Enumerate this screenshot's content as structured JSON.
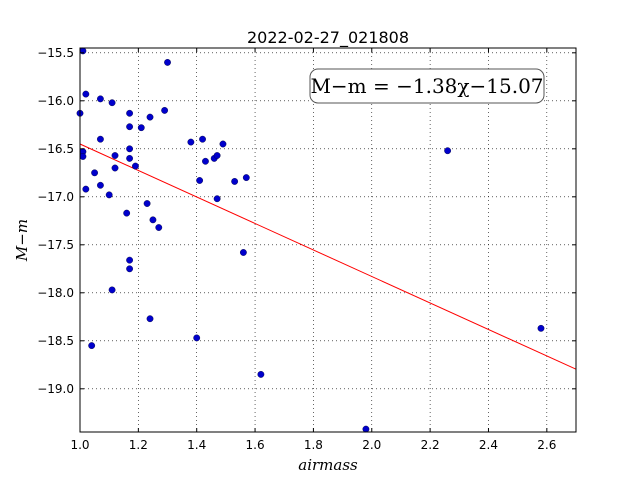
{
  "chart_data": {
    "type": "scatter",
    "title": "2022-02-27_021808",
    "xlabel": "airmass",
    "ylabel": "M−m",
    "xlim": [
      1.0,
      2.7
    ],
    "ylim": [
      -15.45,
      -19.45
    ],
    "y_inverted": true,
    "grid": true,
    "x_ticks": [
      1.0,
      1.2,
      1.4,
      1.6,
      1.8,
      2.0,
      2.2,
      2.4,
      2.6
    ],
    "x_tick_labels": [
      "1.0",
      "1.2",
      "1.4",
      "1.6",
      "1.8",
      "2.0",
      "2.2",
      "2.4",
      "2.6"
    ],
    "y_ticks": [
      -15.5,
      -16.0,
      -16.5,
      -17.0,
      -17.5,
      -18.0,
      -18.5,
      -19.0
    ],
    "y_tick_labels": [
      "−15.5",
      "−16.0",
      "−16.5",
      "−17.0",
      "−17.5",
      "−18.0",
      "−18.5",
      "−19.0"
    ],
    "annotation": "M−m = −1.38χ−15.07",
    "fit": {
      "slope": -1.38,
      "intercept": -15.07,
      "color": "#ff0000"
    },
    "point_color": "#0000cc",
    "points": [
      {
        "x": 1.01,
        "y": -15.48
      },
      {
        "x": 1.0,
        "y": -16.13
      },
      {
        "x": 1.02,
        "y": -15.93
      },
      {
        "x": 1.01,
        "y": -16.53
      },
      {
        "x": 1.01,
        "y": -16.58
      },
      {
        "x": 1.02,
        "y": -16.92
      },
      {
        "x": 1.04,
        "y": -18.55
      },
      {
        "x": 1.05,
        "y": -16.75
      },
      {
        "x": 1.07,
        "y": -15.98
      },
      {
        "x": 1.07,
        "y": -16.4
      },
      {
        "x": 1.07,
        "y": -16.88
      },
      {
        "x": 1.1,
        "y": -16.98
      },
      {
        "x": 1.11,
        "y": -16.02
      },
      {
        "x": 1.11,
        "y": -17.97
      },
      {
        "x": 1.12,
        "y": -16.57
      },
      {
        "x": 1.12,
        "y": -16.7
      },
      {
        "x": 1.17,
        "y": -16.13
      },
      {
        "x": 1.17,
        "y": -16.27
      },
      {
        "x": 1.17,
        "y": -16.5
      },
      {
        "x": 1.17,
        "y": -16.6
      },
      {
        "x": 1.16,
        "y": -17.17
      },
      {
        "x": 1.17,
        "y": -17.66
      },
      {
        "x": 1.17,
        "y": -17.75
      },
      {
        "x": 1.19,
        "y": -16.68
      },
      {
        "x": 1.21,
        "y": -16.28
      },
      {
        "x": 1.24,
        "y": -16.17
      },
      {
        "x": 1.23,
        "y": -17.07
      },
      {
        "x": 1.25,
        "y": -17.24
      },
      {
        "x": 1.24,
        "y": -18.27
      },
      {
        "x": 1.27,
        "y": -17.32
      },
      {
        "x": 1.29,
        "y": -16.1
      },
      {
        "x": 1.3,
        "y": -15.6
      },
      {
        "x": 1.38,
        "y": -16.43
      },
      {
        "x": 1.42,
        "y": -16.4
      },
      {
        "x": 1.41,
        "y": -16.83
      },
      {
        "x": 1.43,
        "y": -16.63
      },
      {
        "x": 1.46,
        "y": -16.6
      },
      {
        "x": 1.47,
        "y": -16.57
      },
      {
        "x": 1.47,
        "y": -17.02
      },
      {
        "x": 1.49,
        "y": -16.45
      },
      {
        "x": 1.4,
        "y": -18.47
      },
      {
        "x": 1.53,
        "y": -16.84
      },
      {
        "x": 1.56,
        "y": -17.58
      },
      {
        "x": 1.57,
        "y": -16.8
      },
      {
        "x": 1.62,
        "y": -18.85
      },
      {
        "x": 1.98,
        "y": -19.42
      },
      {
        "x": 2.26,
        "y": -16.52
      },
      {
        "x": 2.58,
        "y": -18.37
      }
    ]
  }
}
